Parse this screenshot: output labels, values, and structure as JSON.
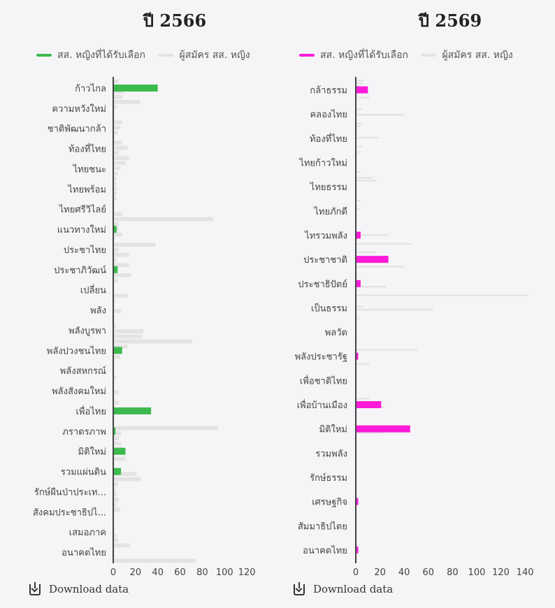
{
  "chart_data": [
    {
      "type": "bar",
      "title": "ปี 2566",
      "orientation": "horizontal",
      "xlim": [
        0,
        135
      ],
      "xticks": [
        0,
        20,
        40,
        60,
        80,
        100,
        120
      ],
      "series": [
        {
          "name": "สส. หญิงที่ได้รับเลือก",
          "color": "#3dba4e"
        },
        {
          "name": "ผู้สมัคร สส. หญิง",
          "color": "#e3e3e3"
        }
      ],
      "categories": [
        "ก้าวไกล",
        "ความหวังใหม่",
        "ชาติพัฒนากล้า",
        "ท้องที่ไทย",
        "ไทยชนะ",
        "ไทยพร้อม",
        "ไทยศรีวิไลย์",
        "แนวทางใหม่",
        "ประชาไทย",
        "ประชาภิวัฒน์",
        "เปลี่ยน",
        "พลัง",
        "พลังบูรพา",
        "พลังปวงชนไทย",
        "พลังสหกรณ์",
        "พลังสังคมใหม่",
        "เพื่อไทย",
        "ภราดรภาพ",
        "มิติใหม่",
        "รวมแผ่นดิน",
        "รักษ์ผืนป่าประเท...",
        "สังคมประชาธิปไ...",
        "เสมอภาค",
        "อนาคตไทย"
      ],
      "elected": [
        40,
        0,
        0,
        0,
        0,
        0,
        0,
        3,
        0,
        4,
        0,
        0,
        0,
        8,
        0,
        0,
        34,
        2,
        11,
        7,
        0,
        0,
        0,
        0
      ],
      "background_candidates": [
        5,
        8,
        10,
        8,
        24,
        3,
        1,
        1,
        8,
        6,
        4,
        1,
        8,
        13,
        5,
        14,
        11,
        6,
        4,
        3,
        3,
        3,
        3,
        3,
        1,
        1,
        8,
        90,
        5,
        5,
        8,
        1,
        38,
        5,
        14,
        3,
        14,
        1,
        16,
        4,
        1,
        1,
        13,
        2,
        1,
        7,
        1,
        1,
        2,
        27,
        26,
        71,
        13,
        4,
        6,
        1,
        1,
        1,
        3,
        1,
        1,
        5,
        1,
        5,
        2,
        1,
        1,
        1,
        94,
        7,
        5,
        7,
        8,
        1,
        11,
        1,
        1,
        21,
        25,
        4,
        2,
        3,
        5,
        3,
        6,
        1,
        1,
        1,
        1,
        3,
        4,
        15,
        1,
        1,
        74
      ]
    },
    {
      "type": "bar",
      "title": "ปี 2569",
      "orientation": "horizontal",
      "xlim": [
        0,
        155
      ],
      "xticks": [
        0,
        20,
        40,
        60,
        80,
        100,
        120,
        140
      ],
      "series": [
        {
          "name": "สส. หญิงที่ได้รับเลือก",
          "color": "#ff1ad9"
        },
        {
          "name": "ผู้สมัคร สส. หญิง",
          "color": "#e3e3e3"
        }
      ],
      "categories": [
        "กล้าธรรม",
        "คลองไทย",
        "ท้องที่ไทย",
        "ไทยก้าวใหม่",
        "ไทยธรรม",
        "ไทยภักดี",
        "ไทรวมพลัง",
        "ประชาชาติ",
        "ประชาธิปัตย์",
        "เป็นธรรม",
        "พลวัต",
        "พลังประชารัฐ",
        "เพื่อชาติไทย",
        "เพื่อบ้านเมือง",
        "มิติใหม่",
        "รวมพลัง",
        "รักษ์ธรรม",
        "เศรษฐกิจ",
        "สัมมาธิปไตย",
        "อนาคตไทย"
      ],
      "elected": [
        10,
        0,
        0,
        0,
        0,
        0,
        4,
        27,
        4,
        0,
        0,
        2,
        0,
        21,
        45,
        0,
        0,
        2,
        0,
        2
      ],
      "background_candidates": [
        7,
        6,
        4,
        1,
        1,
        1,
        11,
        1,
        1,
        1,
        5,
        2,
        40,
        1,
        1,
        5,
        4,
        1,
        2,
        1,
        19,
        1,
        1,
        5,
        1,
        3,
        1,
        1,
        1,
        1,
        1,
        1,
        4,
        1,
        14,
        17,
        1,
        1,
        1,
        1,
        1,
        1,
        4,
        1,
        2,
        3,
        1,
        1,
        1,
        1,
        1,
        1,
        1,
        1,
        27,
        1,
        1,
        46,
        1,
        1,
        17,
        1,
        1,
        17,
        1,
        40,
        1,
        1,
        1,
        1,
        1,
        1,
        25,
        1,
        1,
        143,
        1,
        1,
        1,
        6,
        64,
        1,
        1,
        3,
        1,
        1,
        1,
        1,
        1,
        1,
        1,
        2,
        1,
        1,
        51,
        1,
        1,
        1,
        1,
        11,
        1,
        1,
        1,
        1,
        1,
        1,
        1,
        1,
        1,
        1,
        1,
        11,
        1,
        1,
        24,
        1,
        1,
        1,
        1,
        1,
        1,
        1,
        1,
        23,
        1,
        1,
        1,
        1,
        1,
        1,
        1,
        1,
        1,
        1,
        1,
        1,
        1,
        1,
        1,
        1,
        1,
        1,
        1,
        1,
        1,
        1,
        1,
        1,
        1,
        1,
        1,
        1,
        1,
        1,
        1,
        1,
        1,
        1,
        1,
        1,
        1,
        1,
        1,
        1,
        1,
        1,
        1,
        1,
        1
      ]
    }
  ],
  "download_label": "Download data"
}
